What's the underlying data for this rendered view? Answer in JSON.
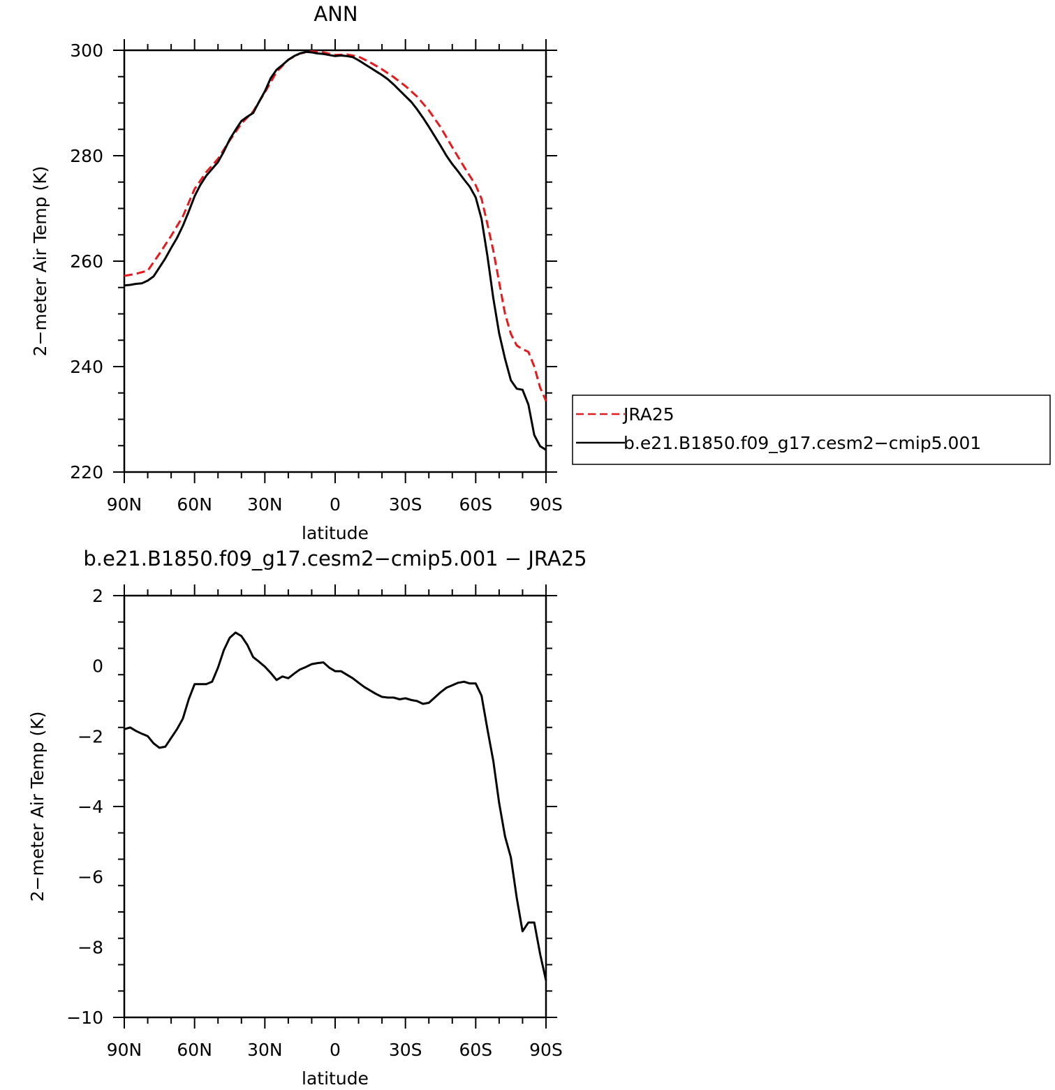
{
  "chart_data": [
    {
      "type": "line",
      "title": "ANN",
      "xlabel": "latitude",
      "ylabel": "2−meter Air Temp (K)",
      "xlim": [
        90,
        -90
      ],
      "ylim": [
        220,
        300
      ],
      "x_ticks": [
        90,
        60,
        30,
        0,
        -30,
        -60,
        -90
      ],
      "x_tick_labels": [
        "90N",
        "60N",
        "30N",
        "0",
        "30S",
        "60S",
        "90S"
      ],
      "y_ticks": [
        220,
        240,
        260,
        280,
        300
      ],
      "y_tick_labels": [
        "220",
        "240",
        "260",
        "280",
        "300"
      ],
      "legend": "right",
      "series": [
        {
          "name": "JRA25",
          "color": "#e41a1c",
          "style": "dashed",
          "x": [
            90,
            85,
            80,
            75,
            70,
            65,
            60,
            55,
            50,
            45,
            40,
            35,
            30,
            25,
            20,
            15,
            10,
            5,
            0,
            -5,
            -10,
            -15,
            -20,
            -25,
            -30,
            -35,
            -40,
            -45,
            -50,
            -55,
            -60,
            -62.5,
            -65,
            -67.5,
            -70,
            -72.5,
            -75,
            -77.5,
            -80,
            -82.5,
            -85,
            -87.5,
            -90
          ],
          "y": [
            257.2,
            257.6,
            258.2,
            261.4,
            264.8,
            268.5,
            273.7,
            276.9,
            279.4,
            282.9,
            286.1,
            288.4,
            292.0,
            295.9,
            298.2,
            299.4,
            299.8,
            299.6,
            299.1,
            299.2,
            298.8,
            297.7,
            296.4,
            294.9,
            293.2,
            291.2,
            288.6,
            285.4,
            281.6,
            277.9,
            274.4,
            271.8,
            267.0,
            262.0,
            256.0,
            250.0,
            246.2,
            244.0,
            243.3,
            242.8,
            240.0,
            236.0,
            233.5
          ]
        },
        {
          "name": "b.e21.B1850.f09_g17.cesm2−cmip5.001",
          "color": "#000000",
          "style": "solid",
          "x": [
            90,
            87.5,
            85,
            82.5,
            80,
            77.5,
            75,
            72.5,
            70,
            67.5,
            65,
            62.5,
            60,
            57.5,
            55,
            52.5,
            50,
            47.5,
            45,
            42.5,
            40,
            37.5,
            35,
            32.5,
            30,
            27.5,
            25,
            22.5,
            20,
            17.5,
            15,
            12.5,
            10,
            7.5,
            5,
            2.5,
            0,
            -2.5,
            -5,
            -7.5,
            -10,
            -12.5,
            -15,
            -17.5,
            -20,
            -22.5,
            -25,
            -27.5,
            -30,
            -32.5,
            -35,
            -37.5,
            -40,
            -42.5,
            -45,
            -47.5,
            -50,
            -52.5,
            -55,
            -57.5,
            -60,
            -62.5,
            -65,
            -67.5,
            -70,
            -72.5,
            -75,
            -77.5,
            -80,
            -82.5,
            -85,
            -87.5,
            -90
          ],
          "y": [
            255.4,
            255.5,
            255.7,
            255.8,
            256.3,
            257.1,
            258.8,
            260.5,
            262.5,
            264.4,
            266.7,
            269.4,
            272.3,
            274.5,
            276.2,
            277.5,
            278.8,
            280.8,
            283.1,
            284.9,
            286.6,
            287.4,
            288.1,
            290.2,
            292.2,
            294.7,
            296.3,
            297.2,
            298.2,
            298.9,
            299.4,
            299.7,
            299.6,
            299.4,
            299.3,
            299.1,
            298.9,
            299.0,
            298.9,
            298.7,
            298.1,
            297.4,
            296.7,
            296.0,
            295.3,
            294.5,
            293.5,
            292.4,
            291.3,
            290.2,
            288.8,
            287.2,
            285.5,
            283.7,
            281.9,
            280.0,
            278.4,
            277.0,
            275.5,
            274.1,
            272.1,
            268.0,
            261.0,
            253.0,
            246.3,
            241.5,
            237.4,
            235.8,
            235.6,
            232.8,
            227.0,
            224.9,
            224.2
          ]
        }
      ]
    },
    {
      "type": "line",
      "title": "b.e21.B1850.f09_g17.cesm2−cmip5.001  −  JRA25",
      "xlabel": "latitude",
      "ylabel": "2−meter Air Temp (K)",
      "xlim": [
        90,
        -90
      ],
      "ylim": [
        -10,
        2
      ],
      "x_ticks": [
        90,
        60,
        30,
        0,
        -30,
        -60,
        -90
      ],
      "x_tick_labels": [
        "90N",
        "60N",
        "30N",
        "0",
        "30S",
        "60S",
        "90S"
      ],
      "y_ticks": [
        -10,
        -8,
        -6,
        -4,
        -2,
        0,
        2
      ],
      "y_tick_labels": [
        "−10",
        "−8",
        "−6",
        "−4",
        "−2",
        "0",
        "2"
      ],
      "series": [
        {
          "color": "#000000",
          "style": "solid",
          "x": [
            90,
            87.5,
            85,
            82.5,
            80,
            77.5,
            75,
            72.5,
            70,
            67.5,
            65,
            62.5,
            60,
            57.5,
            55,
            52.5,
            50,
            47.5,
            45,
            42.5,
            40,
            37.5,
            35,
            32.5,
            30,
            27.5,
            25,
            22.5,
            20,
            17.5,
            15,
            12.5,
            10,
            7.5,
            5,
            2.5,
            0,
            -2.5,
            -5,
            -7.5,
            -10,
            -12.5,
            -15,
            -17.5,
            -20,
            -22.5,
            -25,
            -27.5,
            -30,
            -32.5,
            -35,
            -37.5,
            -40,
            -42.5,
            -45,
            -47.5,
            -50,
            -52.5,
            -55,
            -57.5,
            -60,
            -62.5,
            -65,
            -67.5,
            -70,
            -72.5,
            -75,
            -77.5,
            -80,
            -82.5,
            -85,
            -87.5,
            -90
          ],
          "y": [
            -1.8,
            -1.75,
            -1.85,
            -1.93,
            -2.0,
            -2.2,
            -2.33,
            -2.3,
            -2.05,
            -1.8,
            -1.5,
            -0.95,
            -0.52,
            -0.52,
            -0.52,
            -0.45,
            -0.05,
            0.45,
            0.8,
            0.95,
            0.85,
            0.6,
            0.25,
            0.12,
            -0.02,
            -0.2,
            -0.4,
            -0.3,
            -0.35,
            -0.22,
            -0.1,
            -0.03,
            0.05,
            0.08,
            0.1,
            -0.05,
            -0.15,
            -0.15,
            -0.25,
            -0.35,
            -0.48,
            -0.6,
            -0.7,
            -0.8,
            -0.88,
            -0.9,
            -0.9,
            -0.95,
            -0.92,
            -0.97,
            -1.0,
            -1.08,
            -1.05,
            -0.9,
            -0.75,
            -0.62,
            -0.55,
            -0.48,
            -0.45,
            -0.5,
            -0.5,
            -0.85,
            -1.8,
            -2.7,
            -3.9,
            -4.85,
            -5.45,
            -6.6,
            -7.55,
            -7.3,
            -7.3,
            -8.2,
            -8.95
          ]
        }
      ]
    }
  ]
}
